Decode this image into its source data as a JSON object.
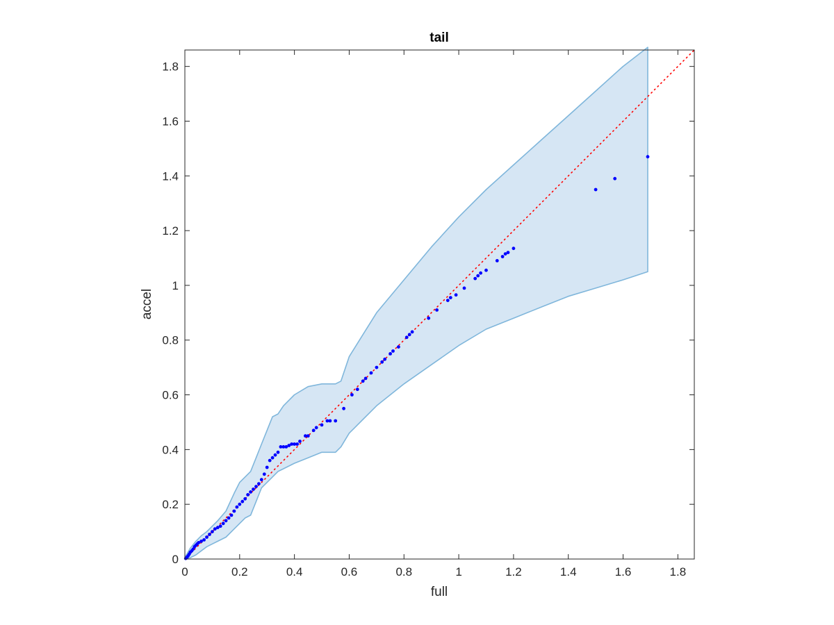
{
  "chart_data": {
    "type": "scatter",
    "title": "tail",
    "xlabel": "full",
    "ylabel": "accel",
    "xlim": [
      0,
      1.86
    ],
    "ylim": [
      0,
      1.86
    ],
    "xticks": [
      0,
      0.2,
      0.4,
      0.6,
      0.8,
      1,
      1.2,
      1.4,
      1.6,
      1.8
    ],
    "yticks": [
      0,
      0.2,
      0.4,
      0.6,
      0.8,
      1,
      1.2,
      1.4,
      1.6,
      1.8
    ],
    "xtick_labels": [
      "0",
      "0.2",
      "0.4",
      "0.6",
      "0.8",
      "1",
      "1.2",
      "1.4",
      "1.6",
      "1.8"
    ],
    "ytick_labels": [
      "0",
      "0.2",
      "0.4",
      "0.6",
      "0.8",
      "1",
      "1.2",
      "1.4",
      "1.6",
      "1.8"
    ],
    "grid": false,
    "box": true,
    "colors": {
      "points": "#0000ff",
      "band_fill": "#d6e6f4",
      "band_edge": "#7fb6db",
      "reference_line": "#ff0000",
      "axes": "#262626"
    },
    "reference_line": {
      "x": [
        0,
        1.86
      ],
      "y": [
        0,
        1.86
      ],
      "style": "dotted"
    },
    "band": {
      "x": [
        0,
        0.02,
        0.04,
        0.06,
        0.08,
        0.1,
        0.12,
        0.15,
        0.18,
        0.2,
        0.22,
        0.24,
        0.26,
        0.28,
        0.3,
        0.32,
        0.34,
        0.36,
        0.4,
        0.45,
        0.5,
        0.55,
        0.57,
        0.6,
        0.65,
        0.7,
        0.8,
        0.9,
        1.0,
        1.1,
        1.2,
        1.3,
        1.4,
        1.5,
        1.6,
        1.69
      ],
      "upper": [
        0.005,
        0.04,
        0.065,
        0.085,
        0.1,
        0.12,
        0.14,
        0.175,
        0.24,
        0.28,
        0.3,
        0.32,
        0.37,
        0.42,
        0.47,
        0.52,
        0.53,
        0.56,
        0.6,
        0.63,
        0.64,
        0.64,
        0.65,
        0.74,
        0.82,
        0.9,
        1.02,
        1.14,
        1.25,
        1.35,
        1.44,
        1.53,
        1.62,
        1.71,
        1.8,
        1.87
      ],
      "lower": [
        0.0,
        0.005,
        0.015,
        0.03,
        0.045,
        0.055,
        0.065,
        0.08,
        0.11,
        0.13,
        0.15,
        0.16,
        0.21,
        0.26,
        0.28,
        0.3,
        0.32,
        0.33,
        0.35,
        0.37,
        0.39,
        0.39,
        0.41,
        0.46,
        0.51,
        0.56,
        0.64,
        0.71,
        0.78,
        0.84,
        0.88,
        0.92,
        0.96,
        0.99,
        1.02,
        1.05
      ]
    },
    "series": [
      {
        "x": [
          0.003,
          0.008,
          0.012,
          0.016,
          0.02,
          0.025,
          0.03,
          0.035,
          0.04,
          0.045,
          0.05,
          0.06,
          0.07,
          0.08,
          0.09,
          0.1,
          0.11,
          0.12,
          0.13,
          0.14,
          0.15,
          0.16,
          0.17,
          0.18,
          0.19,
          0.2,
          0.21,
          0.22,
          0.23,
          0.24,
          0.25,
          0.26,
          0.27,
          0.28,
          0.29,
          0.3,
          0.31,
          0.32,
          0.33,
          0.34,
          0.35,
          0.36,
          0.37,
          0.38,
          0.39,
          0.4,
          0.41,
          0.42,
          0.44,
          0.45,
          0.47,
          0.48,
          0.5,
          0.52,
          0.53,
          0.55,
          0.58,
          0.61,
          0.63,
          0.65,
          0.66,
          0.68,
          0.7,
          0.72,
          0.73,
          0.75,
          0.76,
          0.78,
          0.81,
          0.82,
          0.83,
          0.89,
          0.92,
          0.96,
          0.97,
          0.99,
          1.02,
          1.06,
          1.07,
          1.08,
          1.1,
          1.14,
          1.16,
          1.17,
          1.18,
          1.2,
          1.5,
          1.57,
          1.69
        ],
        "y": [
          0.002,
          0.007,
          0.012,
          0.018,
          0.025,
          0.03,
          0.036,
          0.045,
          0.05,
          0.055,
          0.06,
          0.065,
          0.07,
          0.08,
          0.09,
          0.1,
          0.11,
          0.115,
          0.12,
          0.13,
          0.14,
          0.15,
          0.16,
          0.175,
          0.19,
          0.2,
          0.21,
          0.22,
          0.235,
          0.245,
          0.255,
          0.265,
          0.275,
          0.29,
          0.31,
          0.335,
          0.36,
          0.37,
          0.38,
          0.39,
          0.41,
          0.41,
          0.41,
          0.415,
          0.42,
          0.42,
          0.42,
          0.43,
          0.45,
          0.45,
          0.47,
          0.48,
          0.49,
          0.505,
          0.505,
          0.505,
          0.55,
          0.6,
          0.62,
          0.65,
          0.66,
          0.68,
          0.7,
          0.72,
          0.73,
          0.75,
          0.76,
          0.775,
          0.81,
          0.82,
          0.83,
          0.88,
          0.91,
          0.945,
          0.955,
          0.965,
          0.99,
          1.025,
          1.035,
          1.045,
          1.055,
          1.09,
          1.105,
          1.115,
          1.12,
          1.135,
          1.35,
          1.39,
          1.47
        ]
      }
    ]
  }
}
